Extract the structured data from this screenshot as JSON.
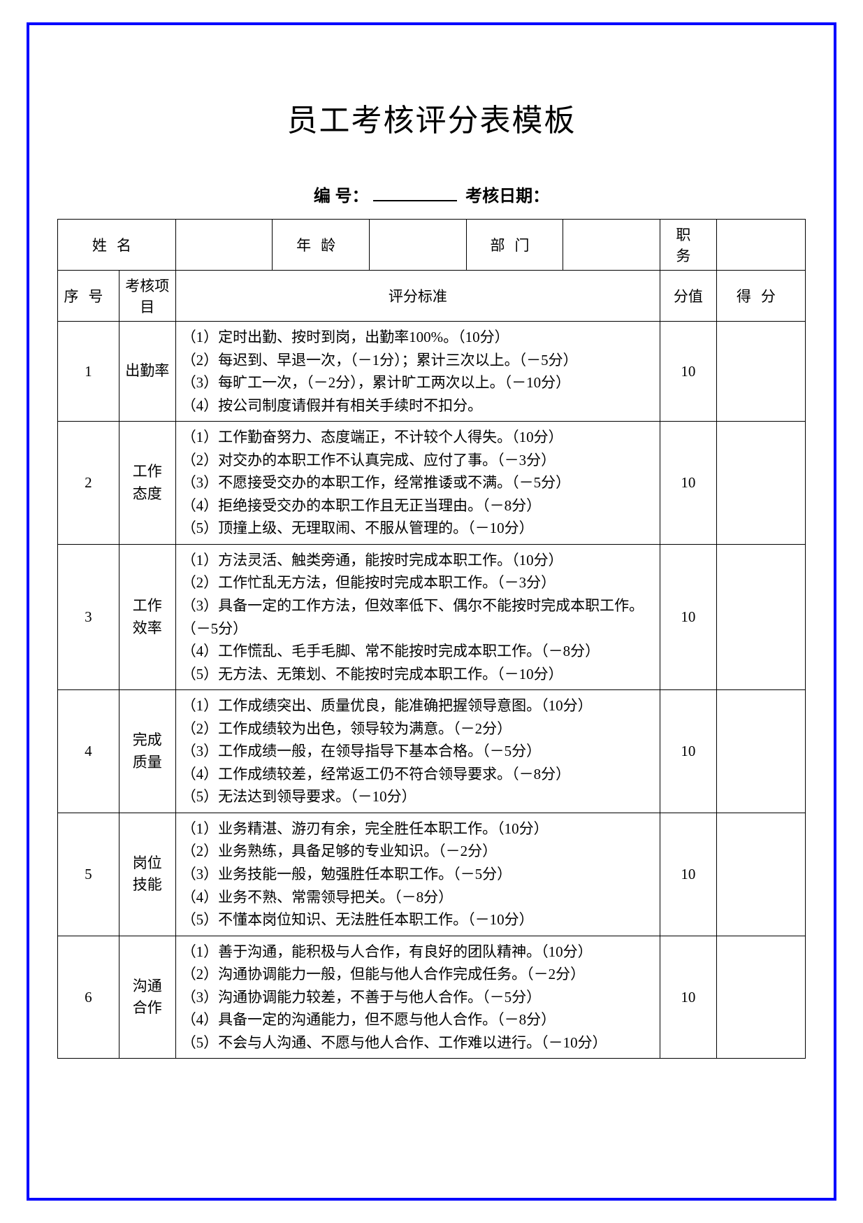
{
  "page": {
    "border_color": "#0000ff",
    "bg_color": "#ffffff",
    "text_color": "#000000"
  },
  "title": "员工考核评分表模板",
  "meta": {
    "number_label": "编  号：",
    "date_label": "考核日期：",
    "number_value": "",
    "date_value": ""
  },
  "info_row": {
    "name_label": "姓名",
    "name_value": "",
    "age_label": "年龄",
    "age_value": "",
    "dept_label": "部门",
    "dept_value": "",
    "post_label": "职务",
    "post_value": ""
  },
  "header": {
    "seq": "序号",
    "item": "考核项目",
    "criteria": "评分标准",
    "score": "分值",
    "got": "得分"
  },
  "rows": [
    {
      "seq": "1",
      "item": "出勤率",
      "criteria": "（1）定时出勤、按时到岗，出勤率100%。（10分）\n（2）每迟到、早退一次，（－1分）；累计三次以上。（－5分）\n（3）每旷工一次，（－2分），累计旷工两次以上。（－10分）\n（4）按公司制度请假并有相关手续时不扣分。",
      "score": "10",
      "got": ""
    },
    {
      "seq": "2",
      "item": "工作\n态度",
      "criteria": "（1）工作勤奋努力、态度端正，不计较个人得失。（10分）\n（2）对交办的本职工作不认真完成、应付了事。（－3分）\n（3）不愿接受交办的本职工作，经常推诿或不满。（－5分）\n（4）拒绝接受交办的本职工作且无正当理由。（－8分）\n（5）顶撞上级、无理取闹、不服从管理的。（－10分）",
      "score": "10",
      "got": ""
    },
    {
      "seq": "3",
      "item": "工作\n效率",
      "criteria": "（1）方法灵活、触类旁通，能按时完成本职工作。（10分）\n（2）工作忙乱无方法，但能按时完成本职工作。（－3分）\n（3）具备一定的工作方法，但效率低下、偶尔不能按时完成本职工作。（－5分）\n（4）工作慌乱、毛手毛脚、常不能按时完成本职工作。（－8分）\n（5）无方法、无策划、不能按时完成本职工作。（－10分）",
      "score": "10",
      "got": ""
    },
    {
      "seq": "4",
      "item": "完成\n质量",
      "criteria": "（1）工作成绩突出、质量优良，能准确把握领导意图。（10分）\n（2）工作成绩较为出色，领导较为满意。（－2分）\n（3）工作成绩一般，在领导指导下基本合格。（－5分）\n（4）工作成绩较差，经常返工仍不符合领导要求。（－8分）\n（5）无法达到领导要求。（－10分）",
      "score": "10",
      "got": ""
    },
    {
      "seq": "5",
      "item": "岗位\n技能",
      "criteria": "（1）业务精湛、游刃有余，完全胜任本职工作。（10分）\n（2）业务熟练，具备足够的专业知识。（－2分）\n（3）业务技能一般，勉强胜任本职工作。（－5分）\n（4）业务不熟、常需领导把关。（－8分）\n（5）不懂本岗位知识、无法胜任本职工作。（－10分）",
      "score": "10",
      "got": ""
    },
    {
      "seq": "6",
      "item": "沟通\n合作",
      "criteria": "（1）善于沟通，能积极与人合作，有良好的团队精神。（10分）\n（2）沟通协调能力一般，但能与他人合作完成任务。（－2分）\n（3）沟通协调能力较差，不善于与他人合作。（－5分）\n（4）具备一定的沟通能力，但不愿与他人合作。（－8分）\n（5）不会与人沟通、不愿与他人合作、工作难以进行。（－10分）",
      "score": "10",
      "got": ""
    }
  ]
}
